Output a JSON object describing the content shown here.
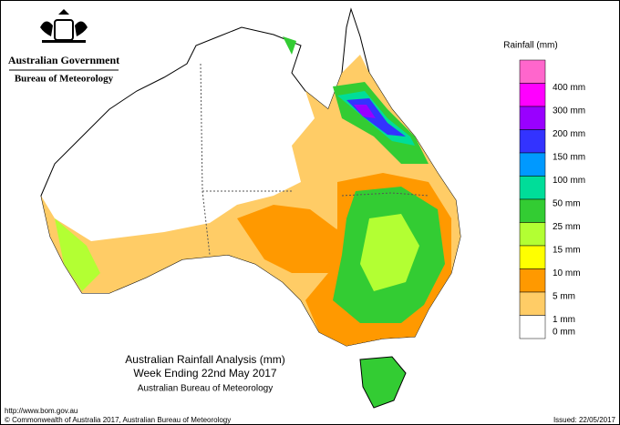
{
  "header": {
    "government": "Australian Government",
    "agency": "Bureau of Meteorology"
  },
  "legend": {
    "title": "Rainfall (mm)",
    "items": [
      {
        "label": "400 mm",
        "color": "#ff66cc"
      },
      {
        "label": "300 mm",
        "color": "#ff00ff"
      },
      {
        "label": "200 mm",
        "color": "#9900ff"
      },
      {
        "label": "150 mm",
        "color": "#3333ff"
      },
      {
        "label": "100 mm",
        "color": "#0099ff"
      },
      {
        "label": "50 mm",
        "color": "#00dd99"
      },
      {
        "label": "25 mm",
        "color": "#33cc33"
      },
      {
        "label": "15 mm",
        "color": "#b3ff33"
      },
      {
        "label": "10 mm",
        "color": "#ffff00"
      },
      {
        "label": "5 mm",
        "color": "#ff9900"
      },
      {
        "label": "1 mm",
        "color": "#ffcc66"
      },
      {
        "label": "0 mm",
        "color": "#ffffff"
      }
    ]
  },
  "map_title": {
    "line1": "Australian Rainfall Analysis (mm)",
    "line2": "Week Ending 22nd May 2017",
    "line3": "Australian Bureau of Meteorology"
  },
  "footer": {
    "url": "http://www.bom.gov.au",
    "copyright": "© Commonwealth of Australia 2017, Australian Bureau of Meteorology",
    "issued": "Issued: 22/05/2017"
  }
}
